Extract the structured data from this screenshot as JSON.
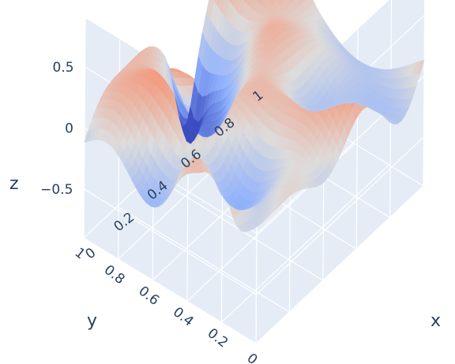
{
  "chart_data": {
    "type": "surface",
    "title": "",
    "xlabel": "x",
    "ylabel": "y",
    "zlabel": "z",
    "x_ticks": [
      "0",
      "0.2",
      "0.4",
      "0.6",
      "0.8",
      "1"
    ],
    "x_tick_values": [
      0,
      0.2,
      0.4,
      0.6,
      0.8,
      1
    ],
    "y_ticks": [
      "0",
      "0.2",
      "0.4",
      "0.6",
      "0.8",
      "1"
    ],
    "y_tick_values": [
      0,
      0.2,
      0.4,
      0.6,
      0.8,
      1
    ],
    "z_ticks": [
      "0.5",
      "0",
      "−0.5"
    ],
    "z_tick_values": [
      0.5,
      0,
      -0.5
    ],
    "xlim": [
      0,
      1
    ],
    "ylim": [
      0,
      1
    ],
    "zlim": [
      -0.9,
      0.9
    ],
    "colorscale": "coolwarm",
    "colorscale_colors": [
      "#3b4cc0",
      "#8db0fe",
      "#dddcdc",
      "#f4987a",
      "#b40426"
    ],
    "scene_background": "#e5ecf6",
    "grid": true,
    "surface_model": {
      "terms": [
        {
          "amp": 0.22,
          "fx": 8,
          "fy": 6,
          "px": 0.3,
          "py": 1.1
        },
        {
          "amp": 0.2,
          "fx": 11,
          "fy": 3,
          "px": 1.7,
          "py": 0.4
        },
        {
          "amp": 0.17,
          "fx": 4,
          "fy": 13,
          "px": 2.4,
          "py": 1.9
        },
        {
          "amp": 0.14,
          "fx": 15,
          "fy": 10,
          "px": 0.9,
          "py": 2.6
        }
      ],
      "peaks": [
        {
          "x": 0.05,
          "y": 0.22,
          "h": 0.45,
          "s": 0.05
        },
        {
          "x": 0.98,
          "y": 0.8,
          "h": 0.5,
          "s": 0.06
        },
        {
          "x": 0.6,
          "y": 0.98,
          "h": -0.55,
          "s": 0.05
        },
        {
          "x": 0.1,
          "y": 0.45,
          "h": 0.35,
          "s": 0.05
        }
      ]
    }
  }
}
